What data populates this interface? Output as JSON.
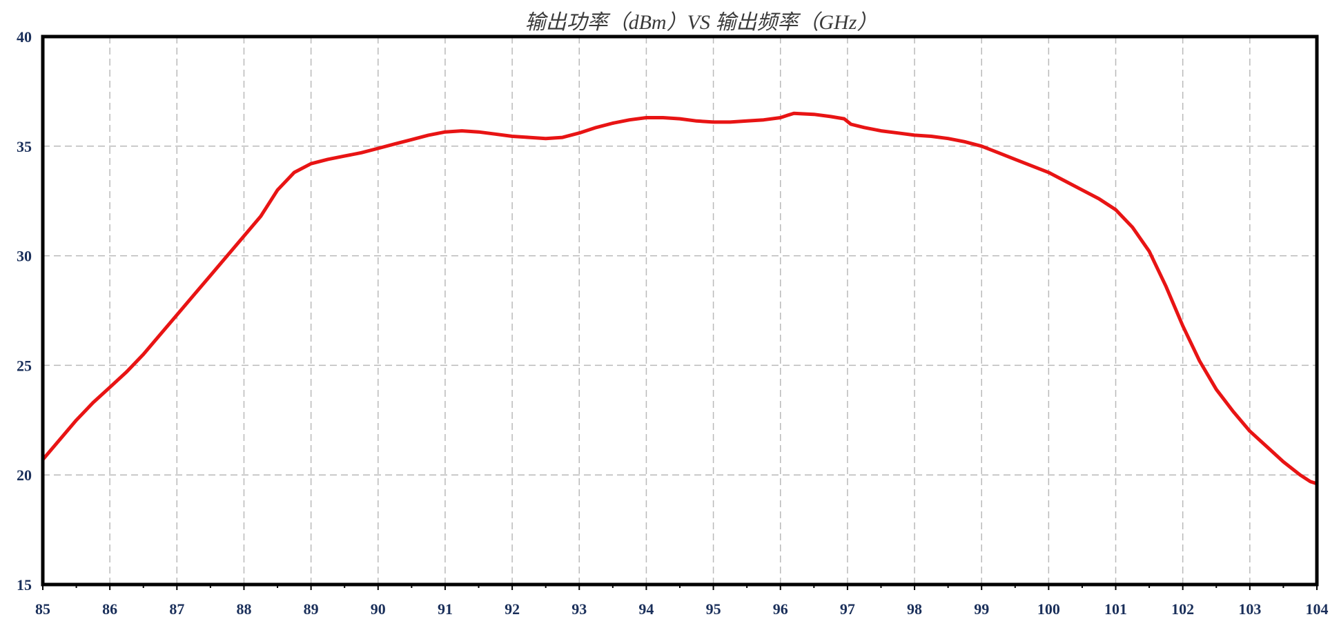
{
  "chart_data": {
    "type": "line",
    "title": "输出功率（dBm）VS 输出频率（GHz）",
    "xlabel": "",
    "ylabel": "",
    "xlim": [
      85,
      104
    ],
    "ylim": [
      15,
      40
    ],
    "x_ticks": [
      85,
      86,
      87,
      88,
      89,
      90,
      91,
      92,
      93,
      94,
      95,
      96,
      97,
      98,
      99,
      100,
      101,
      102,
      103,
      104
    ],
    "y_ticks": [
      15,
      20,
      25,
      30,
      35,
      40
    ],
    "grid": true,
    "series": [
      {
        "color": "#e81414",
        "x": [
          85.0,
          85.25,
          85.5,
          85.75,
          86.0,
          86.25,
          86.5,
          86.75,
          87.0,
          87.25,
          87.5,
          87.75,
          88.0,
          88.25,
          88.5,
          88.75,
          89.0,
          89.25,
          89.5,
          89.75,
          90.0,
          90.25,
          90.5,
          90.75,
          91.0,
          91.25,
          91.5,
          91.75,
          92.0,
          92.25,
          92.5,
          92.75,
          93.0,
          93.25,
          93.5,
          93.75,
          94.0,
          94.25,
          94.5,
          94.75,
          95.0,
          95.25,
          95.5,
          95.75,
          96.0,
          96.1,
          96.2,
          96.5,
          96.75,
          96.95,
          97.05,
          97.25,
          97.5,
          97.75,
          98.0,
          98.25,
          98.5,
          98.75,
          99.0,
          99.25,
          99.5,
          99.75,
          100.0,
          100.25,
          100.5,
          100.75,
          101.0,
          101.25,
          101.5,
          101.75,
          102.0,
          102.25,
          102.5,
          102.75,
          103.0,
          103.25,
          103.5,
          103.75,
          103.9,
          104.0
        ],
        "y": [
          20.7,
          21.6,
          22.5,
          23.3,
          24.0,
          24.7,
          25.5,
          26.4,
          27.3,
          28.2,
          29.1,
          30.0,
          30.9,
          31.8,
          33.0,
          33.8,
          34.2,
          34.4,
          34.55,
          34.7,
          34.9,
          35.1,
          35.3,
          35.5,
          35.65,
          35.7,
          35.65,
          35.55,
          35.45,
          35.4,
          35.35,
          35.4,
          35.6,
          35.85,
          36.05,
          36.2,
          36.3,
          36.3,
          36.25,
          36.15,
          36.1,
          36.1,
          36.15,
          36.2,
          36.3,
          36.4,
          36.5,
          36.45,
          36.35,
          36.25,
          36.0,
          35.85,
          35.7,
          35.6,
          35.5,
          35.45,
          35.35,
          35.2,
          35.0,
          34.7,
          34.4,
          34.1,
          33.8,
          33.4,
          33.0,
          32.6,
          32.1,
          31.3,
          30.2,
          28.6,
          26.8,
          25.2,
          23.9,
          22.9,
          22.0,
          21.3,
          20.6,
          20.0,
          19.7,
          19.6
        ]
      }
    ]
  }
}
